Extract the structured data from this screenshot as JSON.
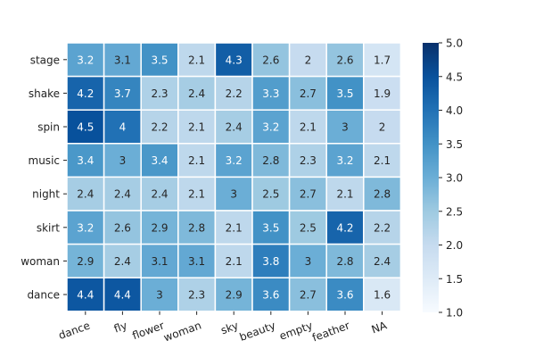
{
  "chart_data": {
    "type": "heatmap",
    "title": "",
    "xlabel": "",
    "ylabel": "",
    "x_categories": [
      "dance",
      "fly",
      "flower",
      "woman",
      "sky",
      "beauty",
      "empty",
      "feather",
      "NA"
    ],
    "y_categories": [
      "stage",
      "shake",
      "spin",
      "music",
      "night",
      "skirt",
      "woman",
      "dance"
    ],
    "values": [
      [
        3.2,
        3.1,
        3.5,
        2.1,
        4.3,
        2.6,
        2,
        2.6,
        1.7
      ],
      [
        4.2,
        3.7,
        2.3,
        2.4,
        2.2,
        3.3,
        2.7,
        3.5,
        1.9
      ],
      [
        4.5,
        4,
        2.2,
        2.1,
        2.4,
        3.2,
        2.1,
        3,
        2
      ],
      [
        3.4,
        3,
        3.4,
        2.1,
        3.2,
        2.8,
        2.3,
        3.2,
        2.1
      ],
      [
        2.4,
        2.4,
        2.4,
        2.1,
        3,
        2.5,
        2.7,
        2.1,
        2.8
      ],
      [
        3.2,
        2.6,
        2.9,
        2.8,
        2.1,
        3.5,
        2.5,
        4.2,
        2.2
      ],
      [
        2.9,
        2.4,
        3.1,
        3.1,
        2.1,
        3.8,
        3,
        2.8,
        2.4
      ],
      [
        4.4,
        4.4,
        3,
        2.3,
        2.9,
        3.6,
        2.7,
        3.6,
        1.6
      ]
    ],
    "colorbar": {
      "min": 1.0,
      "max": 5.0,
      "ticks": [
        "1.0",
        "1.5",
        "2.0",
        "2.5",
        "3.0",
        "3.5",
        "4.0",
        "4.5",
        "5.0"
      ],
      "colormap": "Blues",
      "position": "right"
    },
    "cell_border_color": "#ffffff",
    "x_tick_rotation": "rotated"
  }
}
